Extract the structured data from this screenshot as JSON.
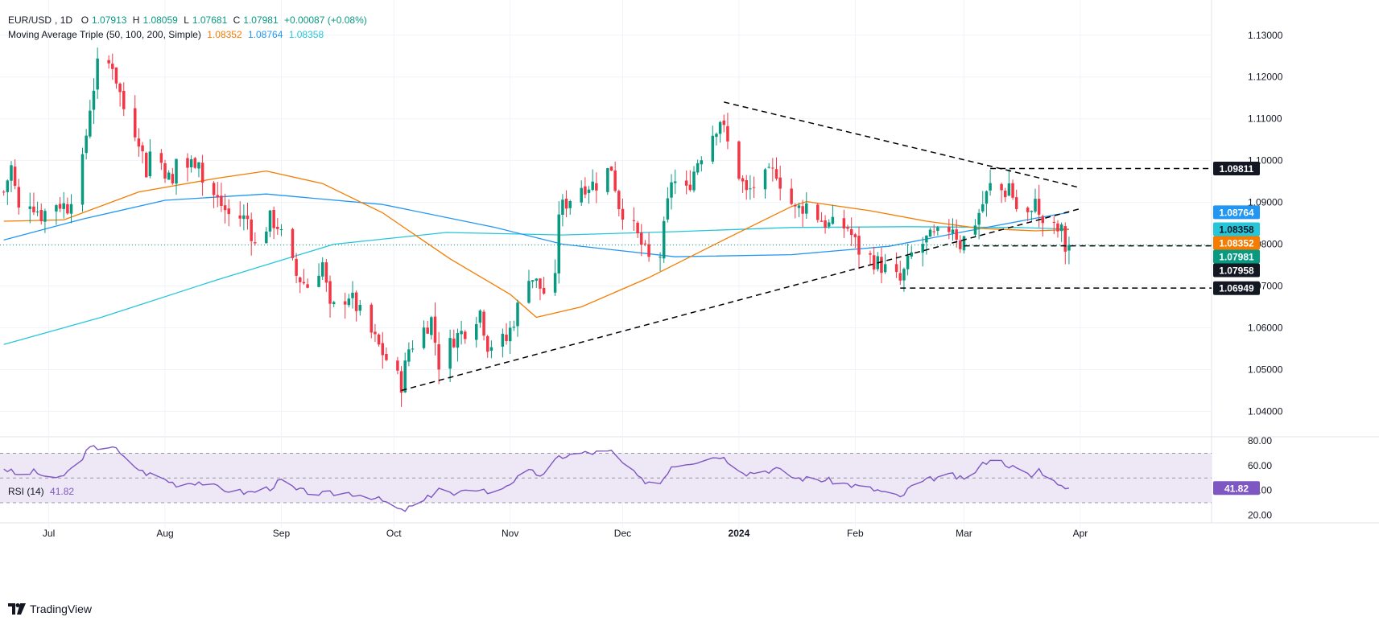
{
  "legend": {
    "symbol": "EUR/USD",
    "interval": "1D",
    "open_label": "O",
    "open": "1.07913",
    "high_label": "H",
    "high": "1.08059",
    "low_label": "L",
    "low": "1.07681",
    "close_label": "C",
    "close": "1.07981",
    "change": "+0.00087 (+0.08%)",
    "ma_title": "Moving Average Triple (50, 100, 200, Simple)",
    "ma_values": [
      "1.08352",
      "1.08764",
      "1.08358"
    ],
    "ma_colors": [
      "#f57c00",
      "#2196f3",
      "#26c6da"
    ],
    "rsi_title": "RSI (14)",
    "rsi_value": "41.82"
  },
  "brand": "TradingView",
  "colors": {
    "up": "#089981",
    "down": "#f23645",
    "ma50": "#f57c00",
    "ma100": "#2196f3",
    "ma200": "#26c6da",
    "rsi": "#7e57c2",
    "rsi_band": "#ede7f6",
    "grid": "#f0f3fa",
    "trendline": "#000000"
  },
  "chart_data": [
    {
      "type": "candlestick",
      "title": "EUR/USD, 1D",
      "ylim": [
        1.0345,
        1.1365
      ],
      "y_ticks": [
        "1.04000",
        "1.05000",
        "1.06000",
        "1.07000",
        "1.08000",
        "1.09000",
        "1.10000",
        "1.11000",
        "1.12000",
        "1.13000"
      ],
      "x_ticks": [
        "Jul",
        "Aug",
        "Sep",
        "Oct",
        "Nov",
        "Dec",
        "2024",
        "Feb",
        "Mar",
        "Apr"
      ],
      "x_tick_dates": [
        "2023-07-01",
        "2023-08-01",
        "2023-09-01",
        "2023-10-01",
        "2023-11-01",
        "2023-12-01",
        "2024-01-01",
        "2024-02-01",
        "2024-03-01",
        "2024-04-01"
      ],
      "x_range": [
        "2023-06-18",
        "2024-05-06"
      ],
      "price_path": [
        [
          "2023-06-19",
          1.0925
        ],
        [
          "2023-06-21",
          1.0985
        ],
        [
          "2023-06-23",
          1.088
        ],
        [
          "2023-06-26",
          1.0905
        ],
        [
          "2023-06-29",
          1.087
        ],
        [
          "2023-07-03",
          1.09
        ],
        [
          "2023-07-06",
          1.089
        ],
        [
          "2023-07-10",
          1.0995
        ],
        [
          "2023-07-12",
          1.113
        ],
        [
          "2023-07-14",
          1.1225
        ],
        [
          "2023-07-18",
          1.1232
        ],
        [
          "2023-07-19",
          1.1195
        ],
        [
          "2023-07-21",
          1.1125
        ],
        [
          "2023-07-25",
          1.1055
        ],
        [
          "2023-07-27",
          1.0975
        ],
        [
          "2023-07-28",
          1.102
        ],
        [
          "2023-07-31",
          1.0995
        ],
        [
          "2023-08-03",
          1.094
        ],
        [
          "2023-08-04",
          1.1005
        ],
        [
          "2023-08-07",
          1.0985
        ],
        [
          "2023-08-10",
          1.101
        ],
        [
          "2023-08-11",
          1.095
        ],
        [
          "2023-08-15",
          1.0905
        ],
        [
          "2023-08-18",
          1.087
        ],
        [
          "2023-08-23",
          1.086
        ],
        [
          "2023-08-25",
          1.0795
        ],
        [
          "2023-08-29",
          1.086
        ],
        [
          "2023-08-31",
          1.0845
        ],
        [
          "2023-09-05",
          1.0725
        ],
        [
          "2023-09-08",
          1.07
        ],
        [
          "2023-09-12",
          1.0755
        ],
        [
          "2023-09-14",
          1.064
        ],
        [
          "2023-09-19",
          1.068
        ],
        [
          "2023-09-21",
          1.065
        ],
        [
          "2023-09-26",
          1.057
        ],
        [
          "2023-10-03",
          1.0465
        ],
        [
          "2023-10-05",
          1.055
        ],
        [
          "2023-10-11",
          1.062
        ],
        [
          "2023-10-13",
          1.0515
        ],
        [
          "2023-10-17",
          1.0575
        ],
        [
          "2023-10-20",
          1.0595
        ],
        [
          "2023-10-24",
          1.064
        ],
        [
          "2023-10-26",
          1.056
        ],
        [
          "2023-10-31",
          1.057
        ],
        [
          "2023-11-02",
          1.062
        ],
        [
          "2023-11-06",
          1.073
        ],
        [
          "2023-11-10",
          1.0685
        ],
        [
          "2023-11-13",
          1.071
        ],
        [
          "2023-11-14",
          1.088
        ],
        [
          "2023-11-20",
          1.094
        ],
        [
          "2023-11-24",
          1.0945
        ],
        [
          "2023-11-28",
          1.0985
        ],
        [
          "2023-11-30",
          1.0895
        ],
        [
          "2023-12-04",
          1.0835
        ],
        [
          "2023-12-08",
          1.0762
        ],
        [
          "2023-12-11",
          1.0775
        ],
        [
          "2023-12-14",
          1.0955
        ],
        [
          "2023-12-18",
          1.0925
        ],
        [
          "2023-12-21",
          1.1
        ],
        [
          "2023-12-27",
          1.11
        ],
        [
          "2023-12-29",
          1.104
        ],
        [
          "2024-01-03",
          1.092
        ],
        [
          "2024-01-05",
          1.094
        ],
        [
          "2024-01-11",
          1.0975
        ],
        [
          "2024-01-12",
          1.095
        ],
        [
          "2024-01-16",
          1.088
        ],
        [
          "2024-01-19",
          1.0895
        ],
        [
          "2024-01-23",
          1.0858
        ],
        [
          "2024-01-25",
          1.0845
        ],
        [
          "2024-01-30",
          1.084
        ],
        [
          "2024-02-02",
          1.0785
        ],
        [
          "2024-02-07",
          1.0755
        ],
        [
          "2024-02-13",
          1.071
        ],
        [
          "2024-02-16",
          1.0775
        ],
        [
          "2024-02-20",
          1.081
        ],
        [
          "2024-02-23",
          1.082
        ],
        [
          "2024-02-27",
          1.0845
        ],
        [
          "2024-02-29",
          1.08
        ],
        [
          "2024-03-04",
          1.0855
        ],
        [
          "2024-03-08",
          1.0938
        ],
        [
          "2024-03-12",
          1.0925
        ],
        [
          "2024-03-13",
          1.0945
        ],
        [
          "2024-03-15",
          1.0885
        ],
        [
          "2024-03-19",
          1.0865
        ],
        [
          "2024-03-20",
          1.0925
        ],
        [
          "2024-03-21",
          1.086
        ],
        [
          "2024-03-25",
          1.0835
        ],
        [
          "2024-03-27",
          1.083
        ],
        [
          "2024-03-28",
          1.0789
        ],
        [
          "2024-03-29",
          1.0798
        ]
      ],
      "ma50": [
        [
          "2023-06-19",
          1.0855
        ],
        [
          "2023-07-05",
          1.0858
        ],
        [
          "2023-07-25",
          1.0925
        ],
        [
          "2023-08-15",
          1.0958
        ],
        [
          "2023-08-28",
          1.0975
        ],
        [
          "2023-09-12",
          1.0945
        ],
        [
          "2023-09-28",
          1.0875
        ],
        [
          "2023-10-16",
          1.0765
        ],
        [
          "2023-11-01",
          1.068
        ],
        [
          "2023-11-08",
          1.0625
        ],
        [
          "2023-11-20",
          1.065
        ],
        [
          "2023-12-08",
          1.072
        ],
        [
          "2023-12-29",
          1.0815
        ],
        [
          "2024-01-15",
          1.089
        ],
        [
          "2024-01-19",
          1.0902
        ],
        [
          "2024-02-05",
          1.088
        ],
        [
          "2024-02-20",
          1.0855
        ],
        [
          "2024-03-05",
          1.0838
        ],
        [
          "2024-03-20",
          1.0832
        ],
        [
          "2024-03-29",
          1.0835
        ]
      ],
      "ma100": [
        [
          "2023-06-19",
          1.081
        ],
        [
          "2023-07-10",
          1.086
        ],
        [
          "2023-08-01",
          1.0905
        ],
        [
          "2023-08-28",
          1.092
        ],
        [
          "2023-09-28",
          1.0895
        ],
        [
          "2023-10-28",
          1.084
        ],
        [
          "2023-11-15",
          1.08
        ],
        [
          "2023-12-15",
          1.077
        ],
        [
          "2024-01-15",
          1.0775
        ],
        [
          "2024-02-10",
          1.0795
        ],
        [
          "2024-03-01",
          1.083
        ],
        [
          "2024-03-20",
          1.0862
        ],
        [
          "2024-03-29",
          1.0876
        ]
      ],
      "ma200": [
        [
          "2023-06-19",
          1.056
        ],
        [
          "2023-07-15",
          1.0625
        ],
        [
          "2023-08-15",
          1.0715
        ],
        [
          "2023-09-15",
          1.08
        ],
        [
          "2023-10-15",
          1.0828
        ],
        [
          "2023-11-15",
          1.0822
        ],
        [
          "2023-12-15",
          1.083
        ],
        [
          "2024-01-15",
          1.084
        ],
        [
          "2024-02-15",
          1.0842
        ],
        [
          "2024-03-15",
          1.084
        ],
        [
          "2024-03-29",
          1.0836
        ]
      ],
      "trendlines": [
        {
          "from": [
            "2023-10-03",
            1.045
          ],
          "to": [
            "2024-04-01",
            1.0885
          ]
        },
        {
          "from": [
            "2023-12-28",
            1.114
          ],
          "to": [
            "2024-04-01",
            1.0935
          ]
        },
        {
          "from": [
            "2024-03-08",
            1.0981
          ],
          "to": [
            "2024-05-06",
            1.0981
          ]
        },
        {
          "from": [
            "2024-03-01",
            1.0796
          ],
          "to": [
            "2024-05-06",
            1.0796
          ]
        },
        {
          "from": [
            "2024-02-13",
            1.0695
          ],
          "to": [
            "2024-05-06",
            1.0695
          ]
        }
      ],
      "last_price_line": 1.07981,
      "price_tags": [
        {
          "value": 1.0981,
          "label": "1.09811",
          "bg": "#131722",
          "fg": "#ffffff"
        },
        {
          "value": 1.08764,
          "label": "1.08764",
          "bg": "#2196f3",
          "fg": "#ffffff"
        },
        {
          "value": 1.08358,
          "label": "1.08358",
          "bg": "#26c6da",
          "fg": "#131722"
        },
        {
          "value": 1.08352,
          "label": "1.08352",
          "bg": "#f57c00",
          "fg": "#ffffff"
        },
        {
          "value": 1.07981,
          "label": "1.07981",
          "bg": "#089981",
          "fg": "#ffffff"
        },
        {
          "value": 1.07958,
          "label": "1.07958",
          "bg": "#131722",
          "fg": "#ffffff"
        },
        {
          "value": 1.06949,
          "label": "1.06949",
          "bg": "#131722",
          "fg": "#ffffff"
        }
      ]
    },
    {
      "type": "line",
      "title": "RSI (14)",
      "ylim": [
        15,
        82
      ],
      "y_ticks": [
        "20.00",
        "40.00",
        "60.00",
        "80.00"
      ],
      "bands": [
        30,
        50,
        70
      ],
      "last_value": 41.82,
      "x_range": [
        "2023-06-18",
        "2024-05-06"
      ],
      "rsi_path": [
        [
          "2023-06-19",
          58
        ],
        [
          "2023-06-23",
          52
        ],
        [
          "2023-06-27",
          55
        ],
        [
          "2023-07-03",
          48
        ],
        [
          "2023-07-07",
          57
        ],
        [
          "2023-07-12",
          74
        ],
        [
          "2023-07-18",
          76
        ],
        [
          "2023-07-21",
          66
        ],
        [
          "2023-07-26",
          55
        ],
        [
          "2023-07-31",
          50
        ],
        [
          "2023-08-04",
          45
        ],
        [
          "2023-08-10",
          47
        ],
        [
          "2023-08-16",
          41
        ],
        [
          "2023-08-23",
          38
        ],
        [
          "2023-08-29",
          42
        ],
        [
          "2023-09-01",
          48
        ],
        [
          "2023-09-05",
          40
        ],
        [
          "2023-09-12",
          37
        ],
        [
          "2023-09-19",
          38
        ],
        [
          "2023-09-25",
          35
        ],
        [
          "2023-09-29",
          30
        ],
        [
          "2023-10-03",
          23
        ],
        [
          "2023-10-09",
          31
        ],
        [
          "2023-10-13",
          42
        ],
        [
          "2023-10-17",
          36
        ],
        [
          "2023-10-24",
          42
        ],
        [
          "2023-10-27",
          37
        ],
        [
          "2023-11-02",
          48
        ],
        [
          "2023-11-06",
          55
        ],
        [
          "2023-11-10",
          52
        ],
        [
          "2023-11-14",
          67
        ],
        [
          "2023-11-20",
          70
        ],
        [
          "2023-11-28",
          71
        ],
        [
          "2023-12-01",
          62
        ],
        [
          "2023-12-06",
          48
        ],
        [
          "2023-12-11",
          46
        ],
        [
          "2023-12-14",
          60
        ],
        [
          "2023-12-21",
          64
        ],
        [
          "2023-12-27",
          68
        ],
        [
          "2024-01-03",
          54
        ],
        [
          "2024-01-11",
          57
        ],
        [
          "2024-01-16",
          50
        ],
        [
          "2024-01-25",
          48
        ],
        [
          "2024-02-02",
          43
        ],
        [
          "2024-02-07",
          40
        ],
        [
          "2024-02-13",
          34
        ],
        [
          "2024-02-16",
          43
        ],
        [
          "2024-02-22",
          50
        ],
        [
          "2024-02-27",
          52
        ],
        [
          "2024-03-01",
          48
        ],
        [
          "2024-03-08",
          66
        ],
        [
          "2024-03-12",
          62
        ],
        [
          "2024-03-15",
          57
        ],
        [
          "2024-03-19",
          51
        ],
        [
          "2024-03-21",
          57
        ],
        [
          "2024-03-25",
          47
        ],
        [
          "2024-03-27",
          46
        ],
        [
          "2024-03-28",
          40
        ],
        [
          "2024-03-29",
          41.82
        ]
      ]
    }
  ]
}
